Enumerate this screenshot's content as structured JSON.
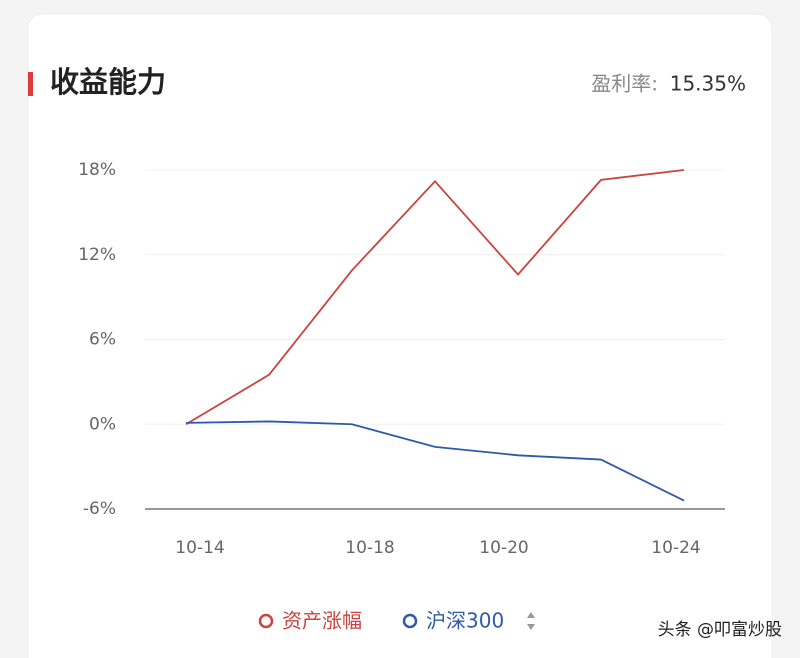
{
  "header": {
    "title": "收益能力",
    "rate_label": "盈利率:",
    "rate_value": "15.35%"
  },
  "chart_data": {
    "type": "line",
    "categories": [
      "10-14",
      null,
      "10-18",
      null,
      "10-20",
      null,
      "10-24"
    ],
    "series": [
      {
        "name": "资产涨幅",
        "color": "#c9433f",
        "values": [
          0,
          3.5,
          10.9,
          17.2,
          10.6,
          17.3,
          18
        ]
      },
      {
        "name": "沪深300",
        "color": "#2f5aa8",
        "values": [
          0.1,
          0.2,
          0,
          -1.6,
          -2.2,
          -2.5,
          -5.4
        ]
      }
    ],
    "ylim": [
      -6,
      18
    ],
    "yticks": [
      {
        "value": -6,
        "label": "-6%"
      },
      {
        "value": 0,
        "label": "0%"
      },
      {
        "value": 6,
        "label": "6%"
      },
      {
        "value": 12,
        "label": "12%"
      },
      {
        "value": 18,
        "label": "18%"
      }
    ],
    "grid": true
  },
  "watermark": "头条 @叩富炒股"
}
